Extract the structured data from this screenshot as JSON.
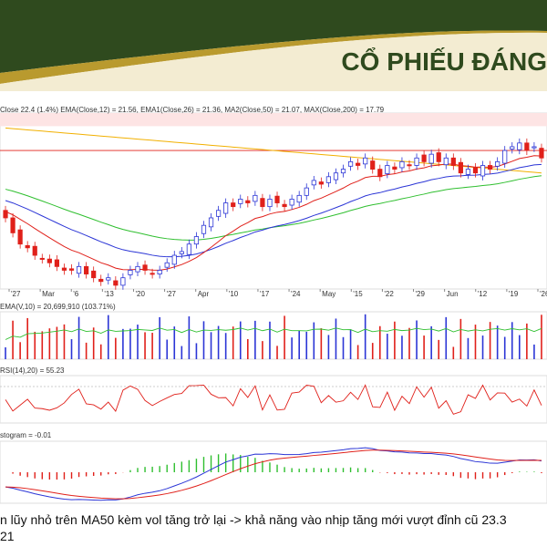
{
  "slide": {
    "title": "CỔ PHIẾU ĐÁNG",
    "caption": "n lũy nhỏ trên MA50 kèm vol tăng trở lại -> khả năng vào nhịp tăng mới vượt đỉnh cũ 23.3",
    "caption2": "21"
  },
  "colors": {
    "banner_dark": "#2f4a1e",
    "banner_gold": "#b99a2e",
    "up_candle": "#2b35d6",
    "down_candle": "#e0201a",
    "ema12": "#e0201a",
    "ema26": "#2b35d6",
    "ma50": "#2fbf2f",
    "ma200": "#f2b000",
    "rsi_line": "#e0201a",
    "macd_line": "#2b35d6",
    "signal_line": "#e0201a",
    "hist_up": "#2fbf2f",
    "hist_down": "#e0201a"
  },
  "legends": {
    "price": "Close 22.4 (1.4%) EMA(Close,12) = 21.56, EMA1(Close,26) = 21.36, MA2(Close,50) = 21.07, MAX(Close,200) = 17.79",
    "volume": "EMA(V,10) = 20,699,910 (103.71%)",
    "rsi": "RSI(14),20) = 55.23",
    "macd": "stogram = -0.01"
  },
  "chart_data": {
    "type": "candlestick",
    "x_ticks": [
      "'27",
      "Mar",
      "'6",
      "'13",
      "'20",
      "'27",
      "Apr",
      "'10",
      "'17",
      "'24",
      "May",
      "'15",
      "'22",
      "'29",
      "Jun",
      "'12",
      "'19",
      "'26"
    ],
    "close": [
      20.8,
      20.4,
      20.1,
      20.0,
      19.8,
      19.7,
      19.6,
      19.5,
      19.4,
      19.4,
      19.5,
      19.3,
      19.2,
      19.1,
      19.2,
      19.0,
      19.2,
      19.4,
      19.5,
      19.4,
      19.3,
      19.4,
      19.6,
      19.8,
      19.9,
      20.1,
      20.3,
      20.6,
      20.8,
      21.0,
      21.2,
      21.1,
      21.3,
      21.2,
      21.4,
      21.1,
      21.3,
      21.2,
      21.1,
      21.3,
      21.4,
      21.6,
      21.8,
      21.7,
      21.9,
      22.0,
      22.1,
      22.3,
      22.2,
      22.4,
      22.1,
      21.9,
      22.2,
      22.1,
      22.3,
      22.2,
      22.4,
      22.3,
      22.5,
      22.3,
      22.4,
      22.2,
      22.0,
      22.1,
      22.0,
      22.2,
      22.1,
      22.3,
      22.6,
      22.7,
      22.8,
      22.6,
      22.7,
      22.4
    ],
    "ema12_end": 21.56,
    "ema26_end": 21.36,
    "ma50_end": 21.07,
    "ma200_end": 17.79,
    "resistance": 23.3,
    "rsi_last": 55.23,
    "macd_hist_last": -0.01
  }
}
